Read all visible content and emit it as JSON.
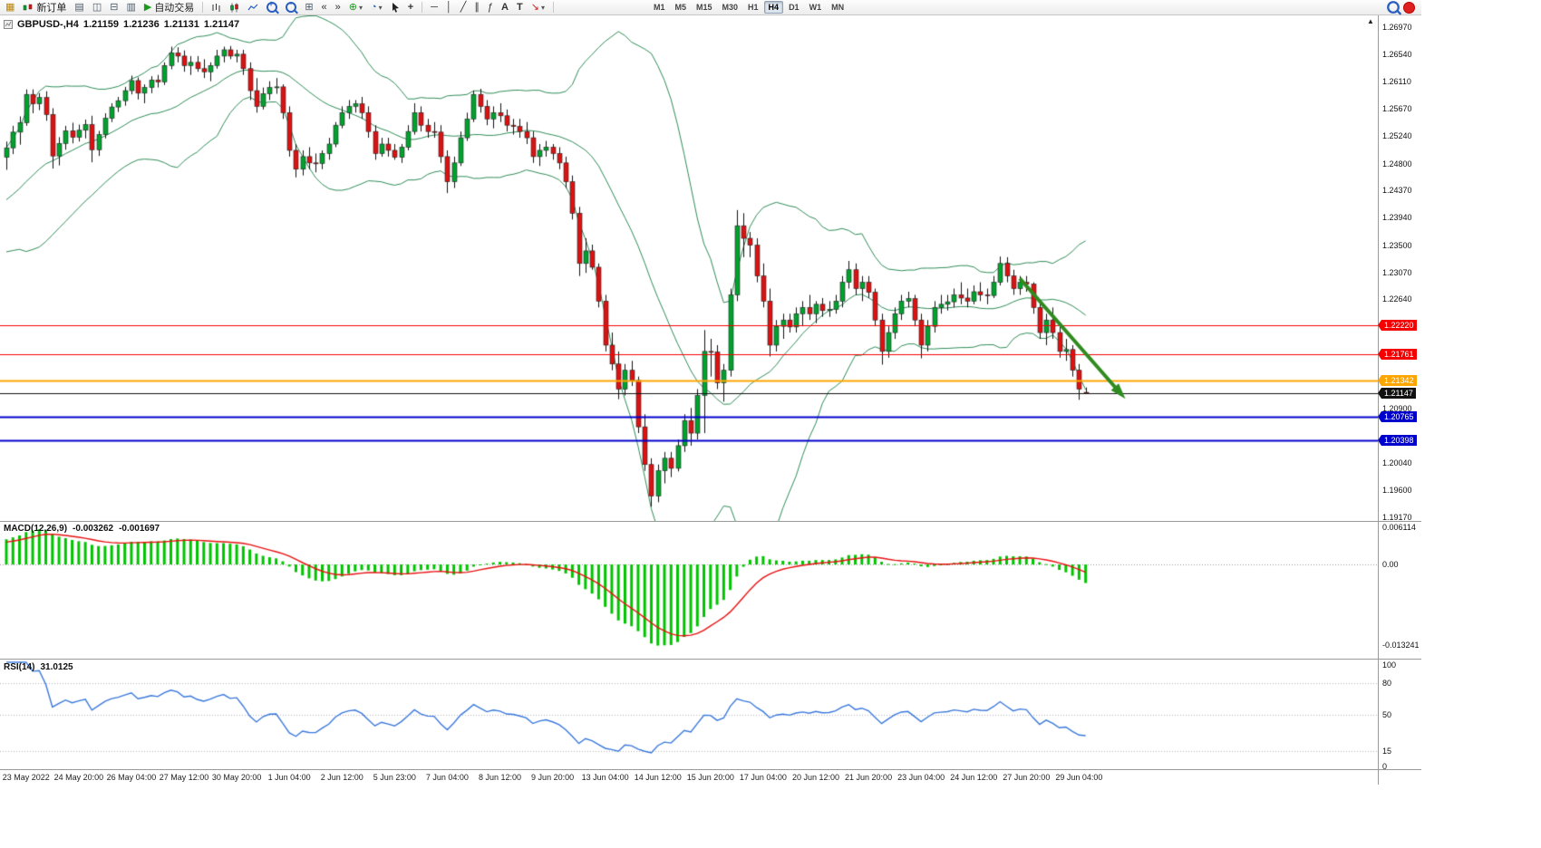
{
  "toolbar": {
    "new_order": {
      "label": "新订单"
    },
    "auto_trading": {
      "label": "自动交易"
    },
    "glyphs": {
      "chart_window": "▦",
      "profiles": "▤",
      "market_watch": "◫",
      "navigator": "⊟",
      "terminal": "▥",
      "play": "▶",
      "tile": "⊞",
      "indicators": "⊕",
      "periods": "◔",
      "caret": "▾",
      "scroll_back": "«",
      "scroll_end": "»",
      "crosshair": "+",
      "hline": "─",
      "vline": "│",
      "trendline": "╱",
      "channel": "∥",
      "fibonacci": "ƒ",
      "text": "A",
      "label": "T",
      "arrows": "↘",
      "zoom_in": "+",
      "zoom_out": "−"
    },
    "timeframes": [
      "M1",
      "M5",
      "M15",
      "M30",
      "H1",
      "H4",
      "D1",
      "W1",
      "MN"
    ],
    "active_timeframe": "H4"
  },
  "chart": {
    "symbol_period": "GBPUSD-,H4",
    "open": "1.21159",
    "high": "1.21236",
    "low": "1.21131",
    "close": "1.21147"
  },
  "price_axis": {
    "max": 1.2697,
    "min": 1.1917,
    "ticks": [
      "1.26970",
      "1.26540",
      "1.26110",
      "1.25670",
      "1.25240",
      "1.24800",
      "1.24370",
      "1.23940",
      "1.23500",
      "1.23070",
      "1.22640",
      "1.20900",
      "1.20040",
      "1.19600",
      "1.19170"
    ]
  },
  "levels": [
    {
      "value": 1.2222,
      "label": "1.22220",
      "color": "#F40000",
      "width": 1
    },
    {
      "value": 1.21761,
      "label": "1.21761",
      "color": "#F40000",
      "width": 1
    },
    {
      "value": 1.21342,
      "label": "1.21342",
      "color": "#FFA500",
      "width": 2
    },
    {
      "value": 1.21147,
      "label": "1.21147",
      "color": "#111111",
      "width": 1
    },
    {
      "value": 1.20765,
      "label": "1.20765",
      "color": "#0000CC",
      "width": 2
    },
    {
      "value": 1.20398,
      "label": "1.20398",
      "color": "#0000CC",
      "width": 2
    }
  ],
  "macd": {
    "label": "MACD(12,26,9)",
    "value": "-0.003262",
    "signal": "-0.001697",
    "range": {
      "max": 0.006114,
      "min": -0.013241
    },
    "axis": [
      {
        "text": "0.006114",
        "value": 0.006114
      },
      {
        "text": "0.00",
        "value": 0
      },
      {
        "text": "-0.013241",
        "value": -0.013241
      }
    ]
  },
  "rsi": {
    "label": "RSI(14)",
    "value": "31.0125",
    "axis": [
      {
        "text": "100",
        "value": 100
      },
      {
        "text": "80",
        "value": 80
      },
      {
        "text": "50",
        "value": 50
      },
      {
        "text": "15",
        "value": 15
      },
      {
        "text": "0",
        "value": 0
      }
    ],
    "levels": [
      80,
      50,
      15
    ]
  },
  "date_axis": {
    "labels": [
      "23 May 2022",
      "24 May 20:00",
      "26 May 04:00",
      "27 May 12:00",
      "30 May 20:00",
      "1 Jun 04:00",
      "2 Jun 12:00",
      "5 Jun 23:00",
      "7 Jun 04:00",
      "8 Jun 12:00",
      "9 Jun 20:00",
      "13 Jun 04:00",
      "14 Jun 12:00",
      "15 Jun 20:00",
      "17 Jun 04:00",
      "20 Jun 12:00",
      "21 Jun 20:00",
      "23 Jun 04:00",
      "24 Jun 12:00",
      "27 Jun 20:00",
      "29 Jun 04:00"
    ]
  },
  "colors": {
    "bull": "#00A32E",
    "bear": "#DD1111",
    "wick": "#111111",
    "bollinger": "#2E8B57",
    "macd_hist": "#00C400",
    "macd_signal": "#E81010",
    "rsi_line": "#3A78DC",
    "arrow": "#2F8B1F",
    "axis_text": "#111111"
  },
  "chart_data": {
    "type": "candlestick",
    "symbol": "GBPUSD",
    "timeframe": "H4",
    "bollinger": {
      "period": 20,
      "deviation": 2
    },
    "annotations": [
      {
        "type": "arrow",
        "from_bar": 154,
        "from_price": 1.2297,
        "to_bar": 169.5,
        "to_price": 1.2112
      }
    ],
    "candles": [
      [
        1.249,
        1.2515,
        1.247,
        1.2505
      ],
      [
        1.2505,
        1.254,
        1.2495,
        1.253
      ],
      [
        1.253,
        1.2555,
        1.251,
        1.2545
      ],
      [
        1.2545,
        1.2598,
        1.254,
        1.259
      ],
      [
        1.259,
        1.2598,
        1.256,
        1.2575
      ],
      [
        1.2575,
        1.2592,
        1.2565,
        1.2585
      ],
      [
        1.2585,
        1.2595,
        1.2548,
        1.2558
      ],
      [
        1.2558,
        1.2568,
        1.2472,
        1.2492
      ],
      [
        1.2492,
        1.2522,
        1.2477,
        1.2512
      ],
      [
        1.2512,
        1.254,
        1.2502,
        1.2532
      ],
      [
        1.2532,
        1.2545,
        1.2512,
        1.2522
      ],
      [
        1.2522,
        1.2542,
        1.2515,
        1.2533
      ],
      [
        1.2533,
        1.255,
        1.252,
        1.2542
      ],
      [
        1.2542,
        1.2556,
        1.2482,
        1.2502
      ],
      [
        1.2502,
        1.2532,
        1.2492,
        1.2526
      ],
      [
        1.2526,
        1.256,
        1.252,
        1.2552
      ],
      [
        1.2552,
        1.2576,
        1.2546,
        1.257
      ],
      [
        1.257,
        1.2586,
        1.2562,
        1.258
      ],
      [
        1.258,
        1.2602,
        1.2572,
        1.2596
      ],
      [
        1.2596,
        1.262,
        1.259,
        1.2612
      ],
      [
        1.2612,
        1.2617,
        1.2582,
        1.2592
      ],
      [
        1.2592,
        1.2606,
        1.2576,
        1.2601
      ],
      [
        1.2601,
        1.2619,
        1.2592,
        1.2613
      ],
      [
        1.2613,
        1.2621,
        1.2601,
        1.261
      ],
      [
        1.261,
        1.2641,
        1.2605,
        1.2636
      ],
      [
        1.2636,
        1.2666,
        1.263,
        1.2656
      ],
      [
        1.2656,
        1.2665,
        1.2641,
        1.2651
      ],
      [
        1.2651,
        1.266,
        1.2626,
        1.2636
      ],
      [
        1.2636,
        1.2651,
        1.2621,
        1.2641
      ],
      [
        1.2641,
        1.2651,
        1.2626,
        1.2631
      ],
      [
        1.2631,
        1.2646,
        1.2616,
        1.2626
      ],
      [
        1.2626,
        1.2641,
        1.2611,
        1.2636
      ],
      [
        1.2636,
        1.2661,
        1.2631,
        1.2651
      ],
      [
        1.2651,
        1.2666,
        1.2641,
        1.2661
      ],
      [
        1.2661,
        1.2667,
        1.2646,
        1.2651
      ],
      [
        1.2651,
        1.2661,
        1.2641,
        1.2654
      ],
      [
        1.2654,
        1.2661,
        1.2621,
        1.2631
      ],
      [
        1.2631,
        1.2641,
        1.2581,
        1.2596
      ],
      [
        1.2596,
        1.2616,
        1.2561,
        1.2571
      ],
      [
        1.2571,
        1.2601,
        1.2566,
        1.2591
      ],
      [
        1.2591,
        1.2611,
        1.2581,
        1.2601
      ],
      [
        1.2601,
        1.2616,
        1.2591,
        1.2602
      ],
      [
        1.2602,
        1.2606,
        1.2551,
        1.2561
      ],
      [
        1.2561,
        1.2571,
        1.2491,
        1.2501
      ],
      [
        1.2501,
        1.2511,
        1.2458,
        1.2471
      ],
      [
        1.2471,
        1.2501,
        1.2461,
        1.2491
      ],
      [
        1.2491,
        1.2506,
        1.2471,
        1.2481
      ],
      [
        1.2481,
        1.2496,
        1.2466,
        1.248
      ],
      [
        1.248,
        1.2501,
        1.2471,
        1.2496
      ],
      [
        1.2496,
        1.2521,
        1.2486,
        1.2511
      ],
      [
        1.2511,
        1.2546,
        1.2506,
        1.2541
      ],
      [
        1.2541,
        1.2571,
        1.2536,
        1.2561
      ],
      [
        1.2561,
        1.2581,
        1.2551,
        1.2571
      ],
      [
        1.2571,
        1.2581,
        1.2561,
        1.2575
      ],
      [
        1.2575,
        1.2586,
        1.2551,
        1.2561
      ],
      [
        1.2561,
        1.2571,
        1.2521,
        1.2531
      ],
      [
        1.2531,
        1.2541,
        1.2486,
        1.2496
      ],
      [
        1.2496,
        1.2521,
        1.2491,
        1.2511
      ],
      [
        1.2511,
        1.2521,
        1.2491,
        1.2501
      ],
      [
        1.2501,
        1.2511,
        1.2486,
        1.249
      ],
      [
        1.249,
        1.2511,
        1.2481,
        1.2506
      ],
      [
        1.2506,
        1.2541,
        1.2501,
        1.2531
      ],
      [
        1.2531,
        1.2576,
        1.2526,
        1.2561
      ],
      [
        1.2561,
        1.2571,
        1.2531,
        1.2541
      ],
      [
        1.2541,
        1.2551,
        1.2521,
        1.2531
      ],
      [
        1.2531,
        1.2546,
        1.2521,
        1.253
      ],
      [
        1.253,
        1.2541,
        1.2481,
        1.2491
      ],
      [
        1.2491,
        1.2501,
        1.2433,
        1.2451
      ],
      [
        1.2451,
        1.2491,
        1.2441,
        1.2481
      ],
      [
        1.2481,
        1.2531,
        1.2476,
        1.2521
      ],
      [
        1.2521,
        1.2561,
        1.2516,
        1.2551
      ],
      [
        1.2551,
        1.2596,
        1.2546,
        1.259
      ],
      [
        1.259,
        1.2599,
        1.2561,
        1.2571
      ],
      [
        1.2571,
        1.2581,
        1.2541,
        1.2551
      ],
      [
        1.2551,
        1.2571,
        1.2536,
        1.2561
      ],
      [
        1.2561,
        1.2576,
        1.2546,
        1.2556
      ],
      [
        1.2556,
        1.2566,
        1.2531,
        1.2541
      ],
      [
        1.2541,
        1.2551,
        1.2526,
        1.2539
      ],
      [
        1.2539,
        1.2551,
        1.2521,
        1.2531
      ],
      [
        1.2531,
        1.2546,
        1.2511,
        1.2521
      ],
      [
        1.2521,
        1.2531,
        1.2481,
        1.2491
      ],
      [
        1.2491,
        1.2511,
        1.2476,
        1.2501
      ],
      [
        1.2501,
        1.2516,
        1.2491,
        1.2506
      ],
      [
        1.2506,
        1.2511,
        1.2486,
        1.2496
      ],
      [
        1.2496,
        1.2506,
        1.2471,
        1.2481
      ],
      [
        1.2481,
        1.2491,
        1.2441,
        1.2451
      ],
      [
        1.2451,
        1.2461,
        1.2391,
        1.2401
      ],
      [
        1.2401,
        1.2411,
        1.2301,
        1.2321
      ],
      [
        1.2321,
        1.2361,
        1.2306,
        1.2341
      ],
      [
        1.2341,
        1.2351,
        1.2311,
        1.2315
      ],
      [
        1.2315,
        1.2321,
        1.2251,
        1.2261
      ],
      [
        1.2261,
        1.2271,
        1.2181,
        1.2191
      ],
      [
        1.2191,
        1.2211,
        1.2151,
        1.2161
      ],
      [
        1.2161,
        1.2181,
        1.2105,
        1.2121
      ],
      [
        1.2121,
        1.2161,
        1.2111,
        1.2151
      ],
      [
        1.2151,
        1.2166,
        1.2126,
        1.2135
      ],
      [
        1.2135,
        1.2141,
        1.2051,
        1.2061
      ],
      [
        1.2061,
        1.2081,
        1.1991,
        1.2001
      ],
      [
        1.2001,
        1.2011,
        1.1934,
        1.1951
      ],
      [
        1.1951,
        1.2001,
        1.1941,
        1.1991
      ],
      [
        1.1991,
        1.2021,
        1.1971,
        1.2011
      ],
      [
        1.2011,
        1.2021,
        1.1981,
        1.1995
      ],
      [
        1.1995,
        1.2041,
        1.199,
        1.2031
      ],
      [
        1.2031,
        1.2081,
        1.2021,
        1.2071
      ],
      [
        1.2071,
        1.2091,
        1.2031,
        1.2051
      ],
      [
        1.2051,
        1.2121,
        1.2041,
        1.2111
      ],
      [
        1.2111,
        1.2215,
        1.2051,
        1.2181
      ],
      [
        1.2181,
        1.2201,
        1.2141,
        1.218
      ],
      [
        1.218,
        1.2191,
        1.2121,
        1.2131
      ],
      [
        1.2131,
        1.2161,
        1.2101,
        1.2151
      ],
      [
        1.2151,
        1.2281,
        1.2141,
        1.2271
      ],
      [
        1.2271,
        1.2406,
        1.2261,
        1.2381
      ],
      [
        1.2381,
        1.2401,
        1.2331,
        1.2361
      ],
      [
        1.2361,
        1.2371,
        1.2331,
        1.235
      ],
      [
        1.235,
        1.2361,
        1.2291,
        1.2301
      ],
      [
        1.2301,
        1.2321,
        1.2251,
        1.2261
      ],
      [
        1.2261,
        1.2281,
        1.2173,
        1.2191
      ],
      [
        1.2191,
        1.2231,
        1.2181,
        1.2221
      ],
      [
        1.2221,
        1.2241,
        1.2201,
        1.2231
      ],
      [
        1.2231,
        1.2241,
        1.2211,
        1.222
      ],
      [
        1.222,
        1.2251,
        1.2211,
        1.2241
      ],
      [
        1.2241,
        1.2261,
        1.2221,
        1.2251
      ],
      [
        1.2251,
        1.2271,
        1.2231,
        1.2241
      ],
      [
        1.2241,
        1.2261,
        1.2226,
        1.2256
      ],
      [
        1.2256,
        1.2266,
        1.2236,
        1.2246
      ],
      [
        1.2246,
        1.2261,
        1.2236,
        1.2248
      ],
      [
        1.2248,
        1.2271,
        1.2241,
        1.2261
      ],
      [
        1.2261,
        1.2301,
        1.2251,
        1.2291
      ],
      [
        1.2291,
        1.2325,
        1.2281,
        1.2311
      ],
      [
        1.2311,
        1.2321,
        1.2271,
        1.2281
      ],
      [
        1.2281,
        1.2301,
        1.2261,
        1.2291
      ],
      [
        1.2291,
        1.2301,
        1.2266,
        1.2275
      ],
      [
        1.2275,
        1.2281,
        1.2221,
        1.2231
      ],
      [
        1.2231,
        1.2241,
        1.216,
        1.2181
      ],
      [
        1.2181,
        1.2221,
        1.2171,
        1.2211
      ],
      [
        1.2211,
        1.2251,
        1.2201,
        1.2241
      ],
      [
        1.2241,
        1.2271,
        1.2231,
        1.2261
      ],
      [
        1.2261,
        1.2276,
        1.2251,
        1.2265
      ],
      [
        1.2265,
        1.2271,
        1.2221,
        1.2231
      ],
      [
        1.2231,
        1.2241,
        1.217,
        1.2191
      ],
      [
        1.2191,
        1.2231,
        1.2181,
        1.2221
      ],
      [
        1.2221,
        1.2261,
        1.2211,
        1.2251
      ],
      [
        1.2251,
        1.2271,
        1.2241,
        1.2256
      ],
      [
        1.2256,
        1.2271,
        1.2246,
        1.226
      ],
      [
        1.226,
        1.2281,
        1.2251,
        1.2271
      ],
      [
        1.2271,
        1.2291,
        1.2256,
        1.2266
      ],
      [
        1.2266,
        1.2281,
        1.2251,
        1.2261
      ],
      [
        1.2261,
        1.2286,
        1.2256,
        1.2276
      ],
      [
        1.2276,
        1.2291,
        1.2261,
        1.2271
      ],
      [
        1.2271,
        1.2281,
        1.2256,
        1.227
      ],
      [
        1.227,
        1.2301,
        1.2266,
        1.2291
      ],
      [
        1.2291,
        1.2332,
        1.2286,
        1.2321
      ],
      [
        1.2321,
        1.2331,
        1.2291,
        1.2301
      ],
      [
        1.2301,
        1.2311,
        1.2271,
        1.2281
      ],
      [
        1.2281,
        1.2301,
        1.2271,
        1.2291
      ],
      [
        1.2291,
        1.2301,
        1.2276,
        1.2288
      ],
      [
        1.2288,
        1.2291,
        1.2241,
        1.2251
      ],
      [
        1.2251,
        1.2261,
        1.2201,
        1.2211
      ],
      [
        1.2211,
        1.2241,
        1.2191,
        1.2231
      ],
      [
        1.2231,
        1.2251,
        1.2201,
        1.2211
      ],
      [
        1.2211,
        1.2221,
        1.2171,
        1.2181
      ],
      [
        1.2181,
        1.2201,
        1.2166,
        1.2184
      ],
      [
        1.2184,
        1.2191,
        1.2141,
        1.2151
      ],
      [
        1.2151,
        1.2161,
        1.2104,
        1.2121
      ],
      [
        1.21159,
        1.21236,
        1.21131,
        1.21147
      ]
    ]
  }
}
